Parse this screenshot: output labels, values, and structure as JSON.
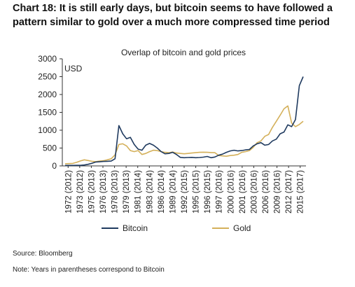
{
  "title_line1": "Chart 18: It is still early days, but bitcoin seems to have followed a",
  "title_line2": "pattern similar to gold over a much more compressed time period",
  "chart_data": {
    "type": "line",
    "title": "Overlap of bitcoin and gold prices",
    "unit_label": "USD",
    "ylim": [
      0,
      3000
    ],
    "yticks": [
      0,
      500,
      1000,
      1500,
      2000,
      2500,
      3000
    ],
    "xtick_labels": [
      "1972 (2012)",
      "1973 (2012)",
      "1975 (2013)",
      "1976 (2013)",
      "1978 (2013)",
      "1979 (2013)",
      "1981 (2014)",
      "1983 (2014)",
      "1986 (2014)",
      "1989 (2014)",
      "1992 (2015)",
      "1995 (2015)",
      "1996 (2015)",
      "1997 (2016)",
      "2000 (2016)",
      "2001 (2016)",
      "2003 (2016)",
      "2006 (2016)",
      "2009 (2016)",
      "2012 (2017)",
      "2015 (2017)"
    ],
    "grid": false,
    "legend_position": "bottom",
    "series": [
      {
        "name": "Bitcoin",
        "color": "#1f3a5f",
        "values": [
          13,
          13,
          14,
          15,
          16,
          25,
          45,
          75,
          110,
          115,
          125,
          130,
          135,
          200,
          1130,
          900,
          760,
          800,
          600,
          470,
          440,
          580,
          630,
          580,
          500,
          400,
          340,
          350,
          380,
          320,
          240,
          230,
          235,
          240,
          230,
          235,
          245,
          265,
          230,
          250,
          300,
          330,
          380,
          420,
          440,
          420,
          430,
          450,
          460,
          560,
          620,
          650,
          580,
          600,
          700,
          750,
          900,
          950,
          1150,
          1100,
          1300,
          2250,
          2500
        ]
      },
      {
        "name": "Gold",
        "color": "#d4b05a",
        "values": [
          60,
          65,
          70,
          100,
          140,
          170,
          150,
          130,
          120,
          135,
          145,
          170,
          200,
          310,
          600,
          620,
          560,
          430,
          400,
          430,
          320,
          350,
          400,
          440,
          430,
          400,
          380,
          370,
          390,
          360,
          350,
          340,
          350,
          360,
          370,
          380,
          385,
          380,
          375,
          370,
          290,
          280,
          270,
          290,
          300,
          320,
          380,
          400,
          430,
          520,
          650,
          700,
          830,
          880,
          1080,
          1250,
          1420,
          1600,
          1680,
          1200,
          1100,
          1160,
          1250
        ]
      }
    ]
  },
  "source_text": "Source: Bloomberg",
  "note_text": "Note: Years in parentheses correspond to Bitcoin"
}
